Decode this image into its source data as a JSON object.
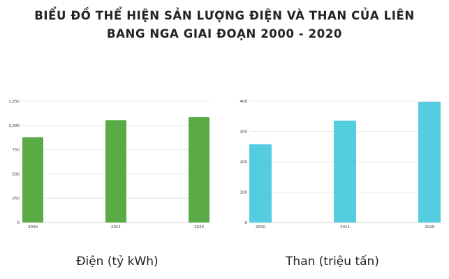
{
  "title": {
    "line1": "BIỂU ĐỒ THỂ HIỆN SẢN LƯỢNG ĐIỆN VÀ THAN CỦA LIÊN",
    "line2": "BANG NGA GIAI ĐOẠN 2000 - 2020"
  },
  "chart_data": [
    {
      "type": "bar",
      "title": "Điện (tỷ kWh)",
      "categories": [
        "2000",
        "2011",
        "2020"
      ],
      "values": [
        878,
        1054,
        1085
      ],
      "ylim": [
        0,
        1250
      ],
      "yticks": [
        "0",
        "250",
        "500",
        "750",
        "1,000",
        "1,250"
      ],
      "color": "#5aaa46",
      "grid": true
    },
    {
      "type": "bar",
      "title": "Than (triệu tấn)",
      "categories": [
        "2000",
        "2011",
        "2020"
      ],
      "values": [
        258,
        336,
        398
      ],
      "ylim": [
        0,
        400
      ],
      "yticks": [
        "0",
        "100",
        "200",
        "300",
        "400"
      ],
      "color": "#55cde0",
      "grid": true
    }
  ]
}
